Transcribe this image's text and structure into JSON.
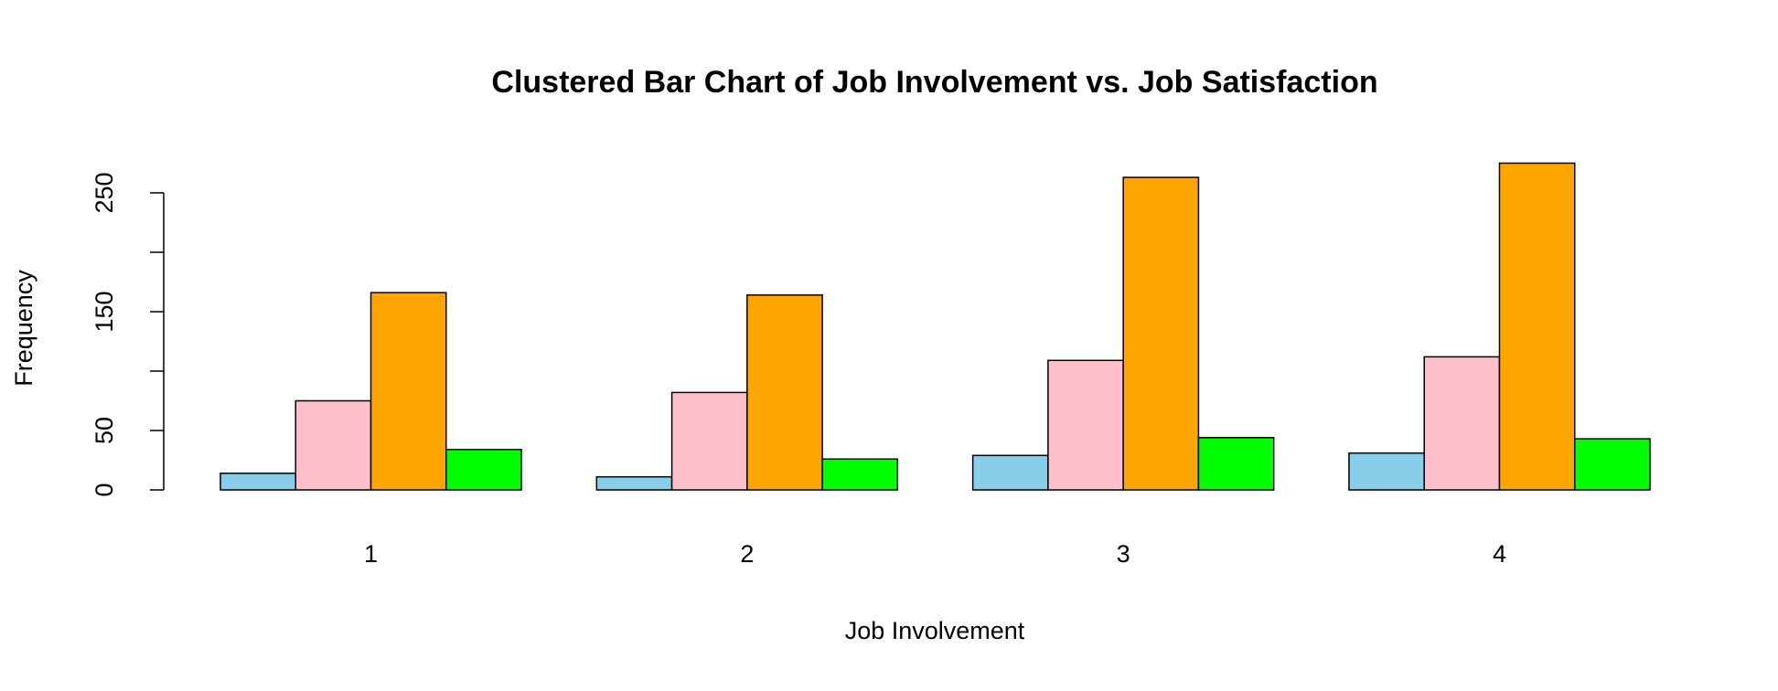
{
  "chart_data": {
    "type": "bar",
    "title": "Clustered Bar Chart of Job Involvement vs. Job Satisfaction",
    "x_label": "Job Involvement",
    "y_label": "Frequency",
    "categories": [
      "1",
      "2",
      "3",
      "4"
    ],
    "series": [
      {
        "color": "#87ceeb",
        "values": [
          14,
          11,
          29,
          31
        ]
      },
      {
        "color": "#ffc0cb",
        "values": [
          75,
          82,
          109,
          112
        ]
      },
      {
        "color": "#ffa500",
        "values": [
          166,
          164,
          263,
          275
        ]
      },
      {
        "color": "#00ff00",
        "values": [
          34,
          26,
          44,
          43
        ]
      }
    ],
    "ylim": [
      0,
      275
    ],
    "yticks": [
      0,
      50,
      {
        "value": 100,
        "label": null
      },
      150,
      {
        "value": 200,
        "label": null
      },
      250
    ]
  }
}
